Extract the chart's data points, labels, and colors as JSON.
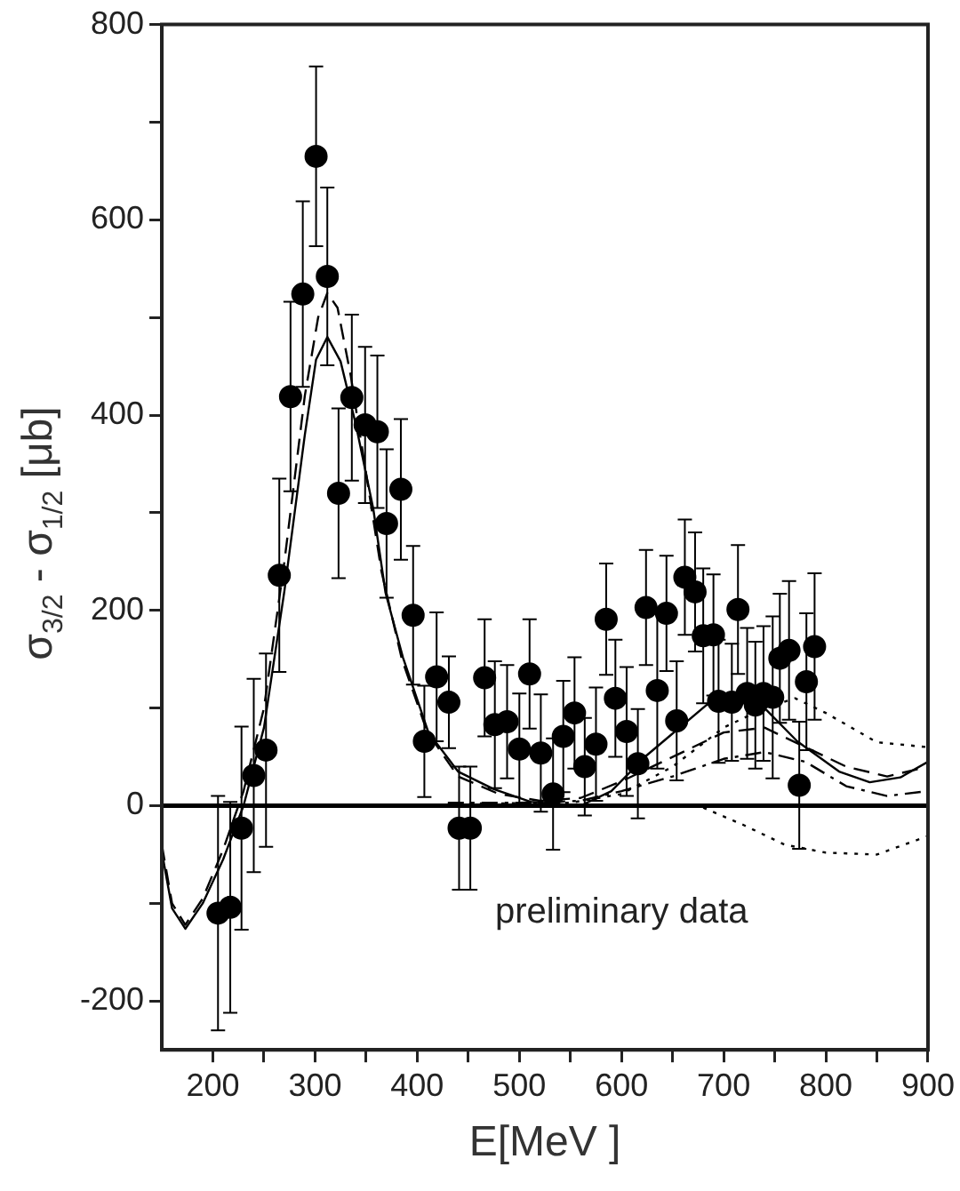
{
  "chart_data": {
    "type": "scatter",
    "xlabel": "E[MeV ]",
    "ylabel": "σ$_{3/2}$ - σ$_{1/2}$ [μb]",
    "annotations": [
      "preliminary data"
    ],
    "xlim": [
      150,
      900
    ],
    "xticks": [
      200,
      {
        "value": 250,
        "label": null
      },
      300,
      {
        "value": 350,
        "label": null
      },
      400,
      {
        "value": 450,
        "label": null
      },
      500,
      {
        "value": 550,
        "label": null
      },
      600,
      {
        "value": 650,
        "label": null
      },
      700,
      {
        "value": 750,
        "label": null
      },
      800,
      {
        "value": 850,
        "label": null
      },
      900
    ],
    "ylim": [
      -250,
      800
    ],
    "yticks": [
      -200,
      {
        "value": -100,
        "label": null
      },
      0,
      {
        "value": 100,
        "label": null
      },
      200,
      {
        "value": 300,
        "label": null
      },
      400,
      {
        "value": 500,
        "label": null
      },
      600,
      {
        "value": 700,
        "label": null
      },
      800
    ],
    "grid": false,
    "legend": false,
    "ref_lines": [
      {
        "axis": "y",
        "value": 0,
        "color": "#000000"
      }
    ],
    "series": [
      {
        "type": "scatter",
        "color": "#000000",
        "marker": "circle",
        "x": [
          205,
          217,
          228,
          240,
          252,
          265,
          276,
          288,
          301,
          312,
          323,
          336,
          349,
          361,
          370,
          384,
          396,
          407,
          419,
          431,
          441,
          452,
          466,
          476,
          488,
          500,
          510,
          521,
          533,
          543,
          554,
          564,
          575,
          585,
          594,
          605,
          616,
          624,
          635,
          644,
          654,
          662,
          672,
          680,
          690,
          695,
          708,
          714,
          723,
          731,
          739,
          748,
          755,
          764,
          774,
          781,
          789
        ],
        "values": [
          -110,
          -104,
          -23,
          31,
          57,
          236,
          419,
          524,
          665,
          542,
          320,
          418,
          390,
          383,
          289,
          324,
          195,
          66,
          132,
          106,
          -23,
          -23,
          131,
          83,
          86,
          58,
          135,
          54,
          12,
          71,
          95,
          40,
          63,
          191,
          110,
          76,
          43,
          203,
          118,
          197,
          87,
          234,
          219,
          174,
          175,
          107,
          106,
          201,
          115,
          103,
          115,
          111,
          151,
          159,
          21,
          127,
          163
        ],
        "errors": [
          120,
          108,
          104,
          99,
          99,
          99,
          97,
          95,
          92,
          91,
          87,
          85,
          80,
          78,
          76,
          72,
          71,
          57,
          66,
          47,
          63,
          63,
          60,
          65,
          58,
          57,
          56,
          60,
          57,
          57,
          57,
          50,
          58,
          57,
          60,
          66,
          56,
          59,
          80,
          59,
          61,
          59,
          61,
          69,
          62,
          63,
          60,
          66,
          67,
          65,
          69,
          83,
          66,
          71,
          65,
          70,
          75
        ]
      },
      {
        "type": "line",
        "color": "#000000",
        "marker": "none",
        "line_style": "solid",
        "x": [
          150,
          160,
          173,
          190,
          210,
          230,
          250,
          270,
          290,
          301,
          312,
          325,
          340,
          357,
          369,
          386,
          411,
          440,
          475,
          511,
          560,
          590,
          624,
          683,
          710,
          740,
          772,
          813,
          843,
          873,
          900
        ],
        "values": [
          -47,
          -105,
          -126,
          -100,
          -55,
          0,
          80,
          220,
          380,
          457,
          480,
          455,
          390,
          304,
          218,
          152,
          75,
          35,
          17,
          4,
          0,
          15,
          51,
          103,
          115,
          100,
          66,
          35,
          24,
          29,
          45
        ]
      },
      {
        "type": "line",
        "color": "#000000",
        "marker": "none",
        "line_style": "dashed",
        "x": [
          150,
          160,
          173,
          190,
          210,
          230,
          250,
          270,
          290,
          303,
          312,
          322,
          335,
          350,
          365,
          385,
          410,
          440,
          480,
          520,
          560,
          600,
          650,
          700,
          740,
          780,
          820,
          860,
          900
        ],
        "values": [
          -40,
          -100,
          -122,
          -95,
          -45,
          15,
          100,
          250,
          420,
          500,
          525,
          510,
          440,
          340,
          240,
          150,
          75,
          30,
          12,
          5,
          8,
          25,
          50,
          75,
          80,
          60,
          40,
          30,
          40
        ]
      },
      {
        "type": "line",
        "color": "#000000",
        "marker": "none",
        "line_style": "dashdot",
        "x": [
          430,
          500,
          560,
          600,
          650,
          700,
          740,
          780,
          820,
          860,
          900
        ],
        "values": [
          3,
          3,
          5,
          15,
          30,
          48,
          55,
          45,
          20,
          10,
          15
        ]
      },
      {
        "type": "line",
        "color": "#000000",
        "marker": "none",
        "line_style": "dotted",
        "x": [
          430,
          550,
          600,
          650,
          700,
          740,
          770,
          800,
          850,
          900
        ],
        "values": [
          2,
          3,
          12,
          40,
          80,
          100,
          110,
          95,
          65,
          60
        ]
      },
      {
        "type": "line",
        "color": "#000000",
        "marker": "none",
        "line_style": "dotted",
        "x": [
          680,
          720,
          760,
          800,
          850,
          900
        ],
        "values": [
          -2,
          -20,
          -40,
          -48,
          -50,
          -31
        ]
      }
    ]
  }
}
